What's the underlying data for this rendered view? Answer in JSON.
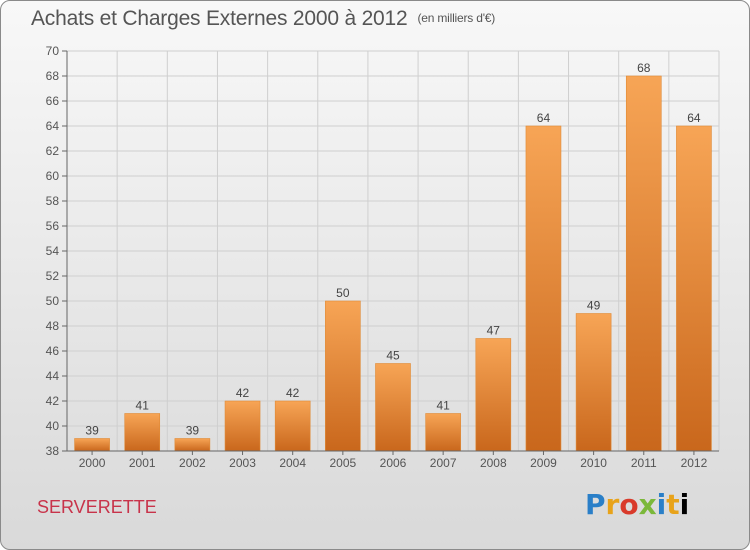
{
  "title": "Achats et Charges Externes 2000 à 2012",
  "unit": "(en milliers d'€)",
  "town": "SERVERETTE",
  "logo_letters": [
    "P",
    "r",
    "o",
    "x",
    "i",
    "t",
    "i"
  ],
  "colors": {
    "bar": "#f0973a",
    "bar_dark": "#c8661b",
    "grid": "#cfcfcf",
    "text": "#555555",
    "town": "#c8334a"
  },
  "chart_data": {
    "type": "bar",
    "title": "Achats et Charges Externes 2000 à 2012",
    "xlabel": "",
    "ylabel": "",
    "categories": [
      "2000",
      "2001",
      "2002",
      "2003",
      "2004",
      "2005",
      "2006",
      "2007",
      "2008",
      "2009",
      "2010",
      "2011",
      "2012"
    ],
    "values": [
      39,
      41,
      39,
      42,
      42,
      50,
      45,
      41,
      47,
      64,
      49,
      68,
      64
    ],
    "ylim": [
      38,
      70
    ],
    "yticks": [
      38,
      40,
      42,
      44,
      46,
      48,
      50,
      52,
      54,
      56,
      58,
      60,
      62,
      64,
      66,
      68,
      70
    ],
    "grid": true
  }
}
